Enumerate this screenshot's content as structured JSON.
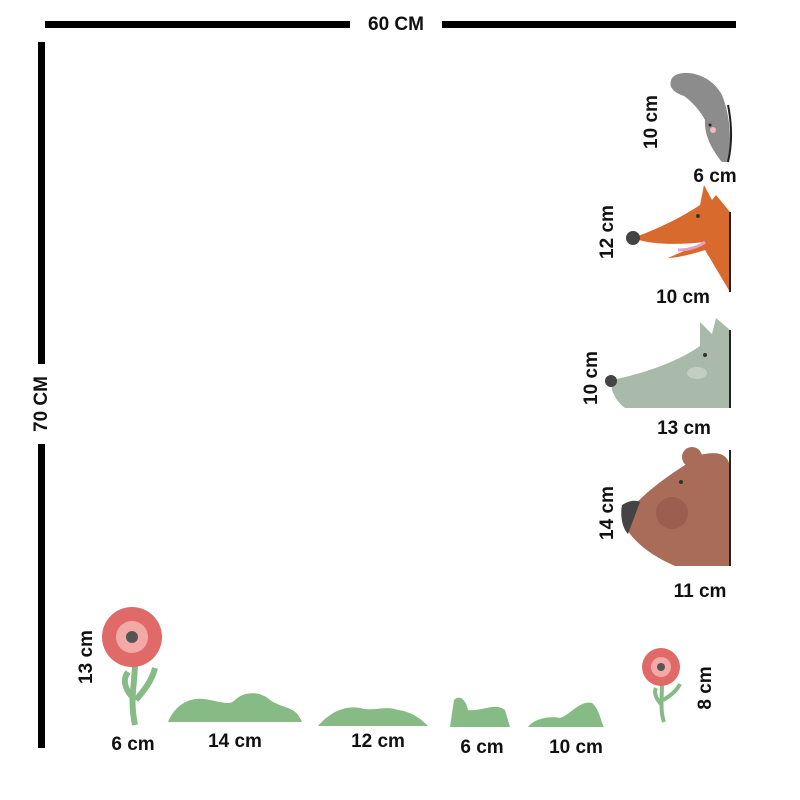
{
  "dimensions": {
    "width_label": "60 CM",
    "height_label": "70 CM"
  },
  "animals": [
    {
      "name": "rabbit",
      "height": "10 cm",
      "width": "6 cm",
      "color": "#8c8c8c"
    },
    {
      "name": "fox",
      "height": "12 cm",
      "width": "10 cm",
      "color": "#d96a2e"
    },
    {
      "name": "wolf",
      "height": "10 cm",
      "width": "13 cm",
      "color": "#a9b9aa"
    },
    {
      "name": "bear",
      "height": "14 cm",
      "width": "11 cm",
      "color": "#a86c58"
    }
  ],
  "bottom": [
    {
      "name": "big-flower",
      "height": "13 cm",
      "width": "6 cm"
    },
    {
      "name": "grass-1",
      "width": "14 cm"
    },
    {
      "name": "grass-2",
      "width": "12 cm"
    },
    {
      "name": "grass-3",
      "width": "6 cm"
    },
    {
      "name": "grass-4",
      "width": "10 cm"
    },
    {
      "name": "small-flower",
      "height": "8 cm"
    }
  ],
  "colors": {
    "grass": "#86bb86",
    "flower": "#e06a68",
    "stem": "#86bb86"
  }
}
